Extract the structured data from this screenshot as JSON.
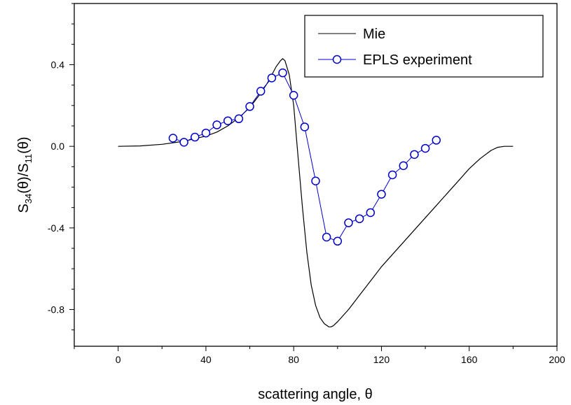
{
  "chart_data": {
    "type": "line",
    "xlabel": "scattering angle, θ",
    "ylabel_parts": {
      "s1": "S",
      "sub1": "34",
      "mid": "(θ)/S",
      "sub2": "11",
      "end": "(θ)"
    },
    "xlim": [
      -20,
      200
    ],
    "ylim": [
      -0.98,
      0.7
    ],
    "x_ticks": [
      {
        "value": 0,
        "label": "0"
      },
      {
        "value": 40,
        "label": "40"
      },
      {
        "value": 80,
        "label": "80"
      },
      {
        "value": 120,
        "label": "120"
      },
      {
        "value": 160,
        "label": "160"
      },
      {
        "value": 200,
        "label": "200"
      }
    ],
    "y_ticks": [
      {
        "value": 0.4,
        "label": "0.4"
      },
      {
        "value": 0.0,
        "label": "0.0"
      },
      {
        "value": -0.4,
        "label": "-0.4"
      },
      {
        "value": -0.8,
        "label": "-0.8"
      }
    ],
    "legend_position": "top-right",
    "series": [
      {
        "name": "Mie",
        "color": "#000000",
        "marker": "none",
        "x": [
          0,
          10,
          20,
          30,
          40,
          45,
          50,
          55,
          60,
          65,
          68,
          70,
          72,
          74,
          75,
          76,
          78,
          80,
          82,
          84,
          86,
          88,
          90,
          92,
          94,
          96,
          97,
          98,
          100,
          105,
          110,
          115,
          120,
          125,
          130,
          135,
          140,
          145,
          150,
          155,
          160,
          165,
          170,
          173,
          176,
          178,
          180
        ],
        "y": [
          0.0,
          0.002,
          0.01,
          0.025,
          0.05,
          0.07,
          0.1,
          0.14,
          0.19,
          0.26,
          0.31,
          0.35,
          0.39,
          0.42,
          0.43,
          0.42,
          0.35,
          0.2,
          -0.05,
          -0.3,
          -0.52,
          -0.68,
          -0.78,
          -0.84,
          -0.87,
          -0.885,
          -0.885,
          -0.88,
          -0.86,
          -0.8,
          -0.73,
          -0.66,
          -0.59,
          -0.53,
          -0.47,
          -0.41,
          -0.35,
          -0.29,
          -0.23,
          -0.17,
          -0.11,
          -0.06,
          -0.02,
          -0.005,
          0.0,
          0.0,
          0.0
        ]
      },
      {
        "name": "EPLS experiment",
        "color": "#0000cc",
        "marker": "circle",
        "x": [
          25,
          30,
          35,
          40,
          45,
          50,
          55,
          60,
          65,
          70,
          75,
          80,
          85,
          90,
          95,
          100,
          105,
          110,
          115,
          120,
          125,
          130,
          135,
          140,
          145
        ],
        "y": [
          0.04,
          0.02,
          0.045,
          0.065,
          0.105,
          0.125,
          0.135,
          0.195,
          0.27,
          0.335,
          0.36,
          0.25,
          0.095,
          -0.17,
          -0.445,
          -0.465,
          -0.375,
          -0.355,
          -0.325,
          -0.235,
          -0.14,
          -0.095,
          -0.04,
          -0.01,
          0.03
        ]
      }
    ]
  }
}
